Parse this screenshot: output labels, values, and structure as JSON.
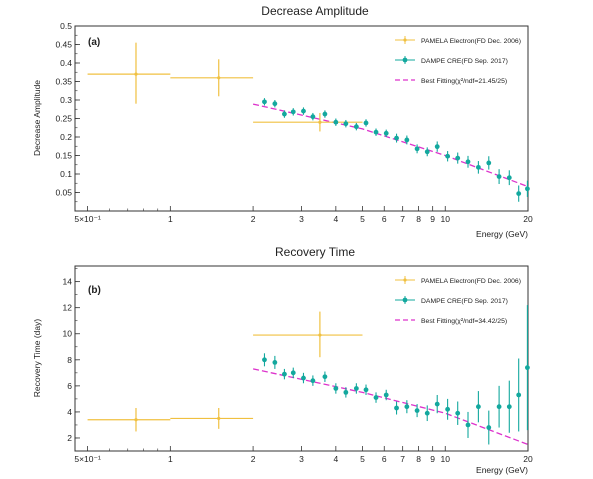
{
  "colors": {
    "pamela": "#f0c040",
    "dampe": "#13a89e",
    "fit": "#dd33cc",
    "axis": "#333333"
  },
  "chart_data": [
    {
      "type": "scatter",
      "panel_label": "(a)",
      "title": "Decrease Amplitude",
      "xlabel": "Energy (GeV)",
      "ylabel": "Decrease Amplitude",
      "xscale": "log",
      "xlim": [
        0.45,
        20
      ],
      "ylim": [
        0,
        0.5
      ],
      "yticks": [
        "0.05",
        "0.1",
        "0.15",
        "0.2",
        "0.25",
        "0.3",
        "0.35",
        "0.4",
        "0.45",
        "0.5"
      ],
      "xticks": [
        {
          "v": 0.5,
          "label": "5×10⁻¹"
        },
        {
          "v": 1,
          "label": "1"
        },
        {
          "v": 2,
          "label": "2"
        },
        {
          "v": 3,
          "label": "3"
        },
        {
          "v": 4,
          "label": "4"
        },
        {
          "v": 5,
          "label": "5"
        },
        {
          "v": 6,
          "label": "6"
        },
        {
          "v": 7,
          "label": "7"
        },
        {
          "v": 8,
          "label": "8"
        },
        {
          "v": 9,
          "label": "9"
        },
        {
          "v": 10,
          "label": "10"
        },
        {
          "v": 20,
          "label": "20"
        }
      ],
      "legend_position": "top-right",
      "series": [
        {
          "name": "PAMELA Electron(FD Dec. 2006)",
          "kind": "points",
          "points": [
            {
              "x": 0.75,
              "xlo": 0.5,
              "xhi": 1.0,
              "y": 0.37,
              "ylo": 0.29,
              "yhi": 0.455
            },
            {
              "x": 1.5,
              "xlo": 1.0,
              "xhi": 2.0,
              "y": 0.36,
              "ylo": 0.31,
              "yhi": 0.41
            },
            {
              "x": 3.5,
              "xlo": 2.0,
              "xhi": 5.0,
              "y": 0.24,
              "ylo": 0.215,
              "yhi": 0.265
            }
          ]
        },
        {
          "name": "DAMPE CRE(FD Sep. 2017)",
          "kind": "points",
          "points": [
            {
              "x": 2.2,
              "y": 0.295,
              "e": 0.01
            },
            {
              "x": 2.4,
              "y": 0.29,
              "e": 0.01
            },
            {
              "x": 2.6,
              "y": 0.262,
              "e": 0.01
            },
            {
              "x": 2.8,
              "y": 0.268,
              "e": 0.01
            },
            {
              "x": 3.05,
              "y": 0.27,
              "e": 0.01
            },
            {
              "x": 3.3,
              "y": 0.255,
              "e": 0.01
            },
            {
              "x": 3.65,
              "y": 0.262,
              "e": 0.01
            },
            {
              "x": 4.0,
              "y": 0.24,
              "e": 0.01
            },
            {
              "x": 4.35,
              "y": 0.236,
              "e": 0.01
            },
            {
              "x": 4.75,
              "y": 0.228,
              "e": 0.01
            },
            {
              "x": 5.15,
              "y": 0.238,
              "e": 0.01
            },
            {
              "x": 5.6,
              "y": 0.213,
              "e": 0.01
            },
            {
              "x": 6.1,
              "y": 0.21,
              "e": 0.01
            },
            {
              "x": 6.65,
              "y": 0.197,
              "e": 0.012
            },
            {
              "x": 7.25,
              "y": 0.192,
              "e": 0.012
            },
            {
              "x": 7.9,
              "y": 0.168,
              "e": 0.012
            },
            {
              "x": 8.6,
              "y": 0.16,
              "e": 0.012
            },
            {
              "x": 9.35,
              "y": 0.174,
              "e": 0.014
            },
            {
              "x": 10.2,
              "y": 0.148,
              "e": 0.014
            },
            {
              "x": 11.1,
              "y": 0.143,
              "e": 0.015
            },
            {
              "x": 12.1,
              "y": 0.133,
              "e": 0.016
            },
            {
              "x": 13.2,
              "y": 0.118,
              "e": 0.017
            },
            {
              "x": 14.4,
              "y": 0.13,
              "e": 0.018
            },
            {
              "x": 15.7,
              "y": 0.093,
              "e": 0.02
            },
            {
              "x": 17.1,
              "y": 0.09,
              "e": 0.02
            },
            {
              "x": 18.5,
              "y": 0.047,
              "e": 0.022
            },
            {
              "x": 19.9,
              "y": 0.06,
              "e": 0.022
            }
          ]
        },
        {
          "name": "Best Fitting(χ²/ndf=21.45/25)",
          "kind": "line",
          "points": [
            [
              2,
              0.289
            ],
            [
              5,
              0.222
            ],
            [
              10,
              0.15
            ],
            [
              20,
              0.066
            ]
          ]
        }
      ]
    },
    {
      "type": "scatter",
      "panel_label": "(b)",
      "title": "Recovery Time",
      "xlabel": "Energy (GeV)",
      "ylabel": "Recovery Time (day)",
      "xscale": "log",
      "xlim": [
        0.45,
        20
      ],
      "ylim": [
        1,
        15.2
      ],
      "yticks": [
        "2",
        "4",
        "6",
        "8",
        "10",
        "12",
        "14"
      ],
      "xticks": [
        {
          "v": 0.5,
          "label": "5×10⁻¹"
        },
        {
          "v": 1,
          "label": "1"
        },
        {
          "v": 2,
          "label": "2"
        },
        {
          "v": 3,
          "label": "3"
        },
        {
          "v": 4,
          "label": "4"
        },
        {
          "v": 5,
          "label": "5"
        },
        {
          "v": 6,
          "label": "6"
        },
        {
          "v": 7,
          "label": "7"
        },
        {
          "v": 8,
          "label": "8"
        },
        {
          "v": 9,
          "label": "9"
        },
        {
          "v": 10,
          "label": "10"
        },
        {
          "v": 20,
          "label": "20"
        }
      ],
      "legend_position": "top-right",
      "series": [
        {
          "name": "PAMELA Electron(FD Dec. 2006)",
          "kind": "points",
          "points": [
            {
              "x": 0.75,
              "xlo": 0.5,
              "xhi": 1.0,
              "y": 3.4,
              "ylo": 2.5,
              "yhi": 4.3
            },
            {
              "x": 1.5,
              "xlo": 1.0,
              "xhi": 2.0,
              "y": 3.5,
              "ylo": 2.7,
              "yhi": 4.3
            },
            {
              "x": 3.5,
              "xlo": 2.0,
              "xhi": 5.0,
              "y": 9.9,
              "ylo": 8.2,
              "yhi": 11.7
            }
          ]
        },
        {
          "name": "DAMPE CRE(FD Sep. 2017)",
          "kind": "points",
          "points": [
            {
              "x": 2.2,
              "y": 8.0,
              "e": 0.5
            },
            {
              "x": 2.4,
              "y": 7.8,
              "e": 0.5
            },
            {
              "x": 2.6,
              "y": 6.9,
              "e": 0.4
            },
            {
              "x": 2.8,
              "y": 7.0,
              "e": 0.4
            },
            {
              "x": 3.05,
              "y": 6.6,
              "e": 0.4
            },
            {
              "x": 3.3,
              "y": 6.4,
              "e": 0.4
            },
            {
              "x": 3.65,
              "y": 6.7,
              "e": 0.4
            },
            {
              "x": 4.0,
              "y": 5.8,
              "e": 0.4
            },
            {
              "x": 4.35,
              "y": 5.5,
              "e": 0.4
            },
            {
              "x": 4.75,
              "y": 5.8,
              "e": 0.4
            },
            {
              "x": 5.15,
              "y": 5.7,
              "e": 0.4
            },
            {
              "x": 5.6,
              "y": 5.1,
              "e": 0.4
            },
            {
              "x": 6.1,
              "y": 5.3,
              "e": 0.4
            },
            {
              "x": 6.65,
              "y": 4.3,
              "e": 0.5
            },
            {
              "x": 7.25,
              "y": 4.4,
              "e": 0.5
            },
            {
              "x": 7.9,
              "y": 4.1,
              "e": 0.5
            },
            {
              "x": 8.6,
              "y": 3.9,
              "e": 0.6
            },
            {
              "x": 9.35,
              "y": 4.6,
              "e": 0.7
            },
            {
              "x": 10.2,
              "y": 4.2,
              "e": 0.8
            },
            {
              "x": 11.1,
              "y": 3.9,
              "e": 0.9
            },
            {
              "x": 12.1,
              "y": 3.0,
              "e": 1.0
            },
            {
              "x": 13.2,
              "y": 4.4,
              "e": 1.2
            },
            {
              "x": 14.4,
              "y": 2.8,
              "e": 1.3
            },
            {
              "x": 15.7,
              "y": 4.4,
              "e": 1.6
            },
            {
              "x": 17.1,
              "y": 4.4,
              "e": 2.0
            },
            {
              "x": 18.5,
              "y": 5.3,
              "e": 2.8
            },
            {
              "x": 19.9,
              "y": 7.4,
              "e": 4.8
            }
          ]
        },
        {
          "name": "Best Fitting(χ²/ndf=34.42/25)",
          "kind": "line",
          "points": [
            [
              2,
              7.3
            ],
            [
              5,
              5.5
            ],
            [
              10,
              3.9
            ],
            [
              20,
              1.5
            ]
          ]
        }
      ]
    }
  ]
}
